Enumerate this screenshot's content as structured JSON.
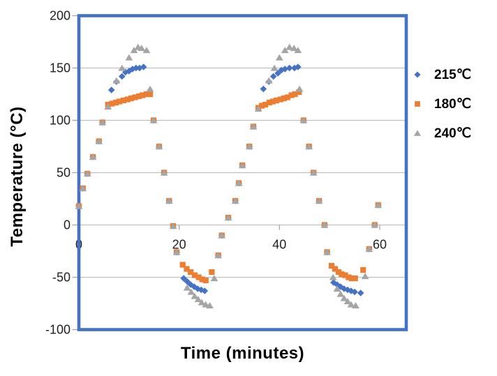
{
  "chart_data": {
    "type": "scatter",
    "title": "",
    "xlabel": "Time (minutes)",
    "ylabel": "Temperature (°C)",
    "xlim": [
      0,
      65.3
    ],
    "ylim": [
      -100,
      200
    ],
    "x_ticks": [
      0,
      20,
      40,
      60
    ],
    "y_ticks": [
      200,
      150,
      100,
      50,
      0,
      -50,
      -100
    ],
    "grid": "horizontal-only",
    "x_axis_at_y": 0,
    "legend_position": "right",
    "draw_order": [
      0,
      1,
      2
    ],
    "style": {
      "frame_color": "#4472C4",
      "gridline_color": "#BFBFBF",
      "tick_color": "#A6A6A6",
      "label_color": "#1f1f1f",
      "background": "#ffffff"
    },
    "series": [
      {
        "name": "215℃",
        "marker": "diamond",
        "color": "#4472C4",
        "points": [
          [
            0,
            18
          ],
          [
            0.8,
            35
          ],
          [
            1.7,
            49
          ],
          [
            2.8,
            65
          ],
          [
            4,
            80
          ],
          [
            4.7,
            98
          ],
          [
            6.5,
            129
          ],
          [
            7.5,
            137
          ],
          [
            8.6,
            142
          ],
          [
            9.3,
            146
          ],
          [
            10,
            147
          ],
          [
            10.7,
            149
          ],
          [
            11.4,
            150
          ],
          [
            12.1,
            150
          ],
          [
            12.9,
            151
          ],
          [
            14.9,
            100
          ],
          [
            16,
            75
          ],
          [
            17,
            50
          ],
          [
            18,
            23
          ],
          [
            18.8,
            -1
          ],
          [
            19.5,
            -26
          ],
          [
            20.9,
            -51
          ],
          [
            21.6,
            -54
          ],
          [
            22.3,
            -57
          ],
          [
            23,
            -59
          ],
          [
            23.7,
            -61
          ],
          [
            24.4,
            -62
          ],
          [
            25.1,
            -63
          ],
          [
            27.8,
            -29
          ],
          [
            28.5,
            -10
          ],
          [
            29.8,
            7
          ],
          [
            31.2,
            23
          ],
          [
            31.9,
            40
          ],
          [
            32.6,
            57
          ],
          [
            34,
            75
          ],
          [
            34.8,
            94
          ],
          [
            36.8,
            130
          ],
          [
            37.9,
            137
          ],
          [
            38.8,
            142
          ],
          [
            39.7,
            145
          ],
          [
            40.4,
            148
          ],
          [
            41.1,
            149
          ],
          [
            42,
            150
          ],
          [
            43,
            150
          ],
          [
            43.7,
            151
          ],
          [
            44.8,
            100
          ],
          [
            45.9,
            75
          ],
          [
            46.8,
            50
          ],
          [
            47.9,
            23
          ],
          [
            49,
            0
          ],
          [
            49.5,
            -26
          ],
          [
            50.8,
            -55
          ],
          [
            51.5,
            -57
          ],
          [
            52.2,
            -59
          ],
          [
            52.9,
            -61
          ],
          [
            53.6,
            -62
          ],
          [
            54.3,
            -63
          ],
          [
            55,
            -64
          ],
          [
            56.2,
            -65
          ],
          [
            57.9,
            -23
          ],
          [
            59,
            0
          ],
          [
            59.7,
            19
          ]
        ]
      },
      {
        "name": "180℃",
        "marker": "square",
        "color": "#ED7D31",
        "points": [
          [
            0,
            18
          ],
          [
            0.8,
            35
          ],
          [
            1.7,
            49
          ],
          [
            2.8,
            65
          ],
          [
            4,
            80
          ],
          [
            4.7,
            98
          ],
          [
            5.8,
            115
          ],
          [
            6.6,
            116
          ],
          [
            7.4,
            117
          ],
          [
            8.1,
            118
          ],
          [
            8.9,
            119
          ],
          [
            9.7,
            120
          ],
          [
            10.4,
            121
          ],
          [
            11.2,
            122
          ],
          [
            12,
            123
          ],
          [
            12.7,
            124
          ],
          [
            13.5,
            125
          ],
          [
            14.2,
            125
          ],
          [
            14.9,
            100
          ],
          [
            16,
            75
          ],
          [
            17,
            50
          ],
          [
            18,
            23
          ],
          [
            18.8,
            -1
          ],
          [
            19.5,
            -26
          ],
          [
            20.7,
            -38
          ],
          [
            21.5,
            -42
          ],
          [
            22.3,
            -45
          ],
          [
            23.1,
            -48
          ],
          [
            23.9,
            -50
          ],
          [
            24.6,
            -52
          ],
          [
            25.3,
            -53
          ],
          [
            26.5,
            -45
          ],
          [
            27.8,
            -29
          ],
          [
            28.5,
            -10
          ],
          [
            29.8,
            7
          ],
          [
            31.2,
            23
          ],
          [
            31.9,
            40
          ],
          [
            32.6,
            57
          ],
          [
            34,
            75
          ],
          [
            34.8,
            94
          ],
          [
            35.8,
            112
          ],
          [
            36.5,
            114
          ],
          [
            37.2,
            115
          ],
          [
            38,
            117
          ],
          [
            38.7,
            118
          ],
          [
            39.4,
            119
          ],
          [
            40.2,
            120
          ],
          [
            40.9,
            121
          ],
          [
            41.6,
            122
          ],
          [
            42.4,
            124
          ],
          [
            43.1,
            125
          ],
          [
            43.9,
            127
          ],
          [
            44.8,
            100
          ],
          [
            45.9,
            75
          ],
          [
            46.8,
            50
          ],
          [
            47.9,
            23
          ],
          [
            49,
            0
          ],
          [
            49.5,
            -26
          ],
          [
            50.4,
            -39
          ],
          [
            51.1,
            -42
          ],
          [
            51.8,
            -45
          ],
          [
            52.4,
            -47
          ],
          [
            53.1,
            -48
          ],
          [
            53.8,
            -50
          ],
          [
            54.4,
            -51
          ],
          [
            55.1,
            -51
          ],
          [
            56.7,
            -43
          ],
          [
            57.9,
            -23
          ],
          [
            59,
            0
          ],
          [
            59.7,
            19
          ]
        ]
      },
      {
        "name": "240℃",
        "marker": "triangle",
        "color": "#A5A5A5",
        "points": [
          [
            0,
            18
          ],
          [
            0.8,
            35
          ],
          [
            1.7,
            49
          ],
          [
            2.8,
            65
          ],
          [
            4,
            80
          ],
          [
            4.7,
            98
          ],
          [
            5.8,
            113
          ],
          [
            7.5,
            138
          ],
          [
            8.6,
            150
          ],
          [
            10,
            160
          ],
          [
            11,
            167
          ],
          [
            11.8,
            170
          ],
          [
            12.5,
            169
          ],
          [
            13.5,
            167
          ],
          [
            14.2,
            130
          ],
          [
            14.9,
            100
          ],
          [
            16,
            75
          ],
          [
            17,
            50
          ],
          [
            18,
            23
          ],
          [
            18.8,
            -1
          ],
          [
            19.5,
            -26
          ],
          [
            21.6,
            -60
          ],
          [
            22.4,
            -64
          ],
          [
            23.1,
            -68
          ],
          [
            23.8,
            -71
          ],
          [
            24.5,
            -74
          ],
          [
            25.3,
            -76
          ],
          [
            26.1,
            -77
          ],
          [
            27,
            -51
          ],
          [
            27.8,
            -29
          ],
          [
            28.5,
            -10
          ],
          [
            29.8,
            7
          ],
          [
            31.2,
            23
          ],
          [
            31.9,
            40
          ],
          [
            32.6,
            57
          ],
          [
            34,
            75
          ],
          [
            34.8,
            94
          ],
          [
            35.8,
            111
          ],
          [
            37.9,
            138
          ],
          [
            39,
            150
          ],
          [
            40,
            160
          ],
          [
            41.1,
            167
          ],
          [
            42,
            170
          ],
          [
            42.9,
            169
          ],
          [
            43.7,
            167
          ],
          [
            44,
            130
          ],
          [
            44.8,
            100
          ],
          [
            45.9,
            75
          ],
          [
            46.8,
            50
          ],
          [
            47.9,
            23
          ],
          [
            49,
            0
          ],
          [
            49.5,
            -26
          ],
          [
            50.7,
            -50
          ],
          [
            51.5,
            -61
          ],
          [
            52.2,
            -66
          ],
          [
            52.9,
            -70
          ],
          [
            53.6,
            -73
          ],
          [
            54.3,
            -76
          ],
          [
            55.2,
            -77
          ],
          [
            57.1,
            -49
          ],
          [
            57.9,
            -23
          ],
          [
            59,
            0
          ],
          [
            59.7,
            19
          ]
        ]
      }
    ]
  }
}
